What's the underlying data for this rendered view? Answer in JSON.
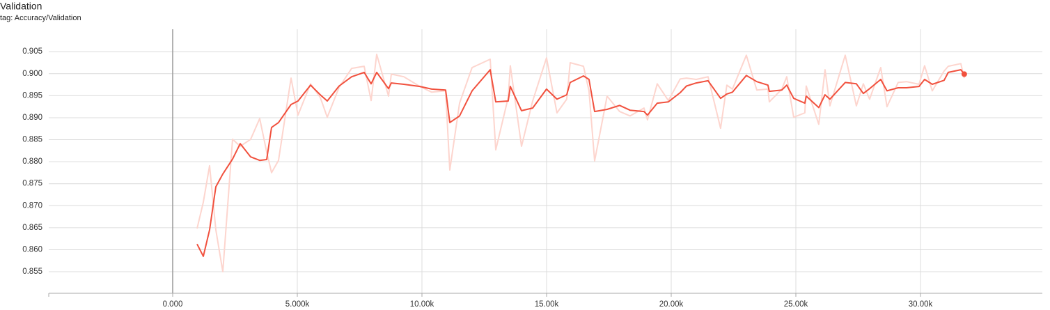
{
  "chart_data": {
    "type": "line",
    "title": "Validation",
    "subtitle": "tag: Accuracy/Validation",
    "x": [
      978,
      1229,
      1480,
      1732,
      2011,
      2402,
      2709,
      3128,
      3491,
      3771,
      3966,
      4245,
      4748,
      5027,
      5530,
      5921,
      6200,
      6675,
      7178,
      7681,
      7960,
      8183,
      8658,
      8770,
      9273,
      9915,
      10390,
      10949,
      11116,
      11507,
      12010,
      12736,
      12960,
      13462,
      13546,
      13993,
      14440,
      14998,
      15417,
      15808,
      15948,
      16479,
      16702,
      16926,
      17428,
      17931,
      18350,
      18909,
      19048,
      19439,
      19886,
      20361,
      20612,
      21003,
      21478,
      21981,
      22232,
      22456,
      23014,
      23433,
      23880,
      23936,
      24439,
      24634,
      24914,
      25360,
      25416,
      25919,
      26170,
      26366,
      26980,
      27427,
      27707,
      27958,
      28405,
      28656,
      29103,
      29438,
      29941,
      30164,
      30472,
      30946,
      31114,
      31617,
      31756
    ],
    "series": [
      {
        "color": "#fdd5ce",
        "width": 2,
        "values": [
          0.8648,
          0.8708,
          0.8791,
          0.8645,
          0.855,
          0.8851,
          0.8835,
          0.8851,
          0.8898,
          0.8822,
          0.8775,
          0.8803,
          0.899,
          0.8906,
          0.8977,
          0.8946,
          0.8901,
          0.8969,
          0.9012,
          0.9017,
          0.8939,
          0.9044,
          0.8949,
          0.8999,
          0.8993,
          0.8971,
          0.8958,
          0.8961,
          0.8781,
          0.8933,
          0.9014,
          0.9033,
          0.8827,
          0.8946,
          0.9018,
          0.8835,
          0.8938,
          0.9036,
          0.8911,
          0.8942,
          0.9025,
          0.9017,
          0.8961,
          0.8802,
          0.8949,
          0.8914,
          0.8904,
          0.8922,
          0.8895,
          0.8977,
          0.8939,
          0.8988,
          0.899,
          0.8987,
          0.8993,
          0.8876,
          0.8974,
          0.8965,
          0.9042,
          0.8963,
          0.8965,
          0.8936,
          0.8965,
          0.8993,
          0.8901,
          0.8911,
          0.8972,
          0.8885,
          0.9009,
          0.8927,
          0.9042,
          0.8927,
          0.8977,
          0.8942,
          0.9014,
          0.8925,
          0.898,
          0.8982,
          0.8976,
          0.9018,
          0.8961,
          0.9006,
          0.9017,
          0.9023,
          0.899
        ]
      },
      {
        "color": "#f1513e",
        "width": 2,
        "end_marker": true,
        "values": [
          0.8613,
          0.8585,
          0.8645,
          0.8743,
          0.8772,
          0.8806,
          0.8841,
          0.8811,
          0.8803,
          0.8805,
          0.8878,
          0.8889,
          0.893,
          0.8938,
          0.8974,
          0.8952,
          0.8938,
          0.8972,
          0.8993,
          0.9003,
          0.8977,
          0.9003,
          0.8966,
          0.8979,
          0.8976,
          0.8971,
          0.8965,
          0.8963,
          0.8889,
          0.8904,
          0.8961,
          0.9009,
          0.8936,
          0.8938,
          0.8971,
          0.8916,
          0.8922,
          0.8965,
          0.8942,
          0.8952,
          0.898,
          0.8995,
          0.8987,
          0.8914,
          0.8919,
          0.8928,
          0.8917,
          0.8914,
          0.8906,
          0.8933,
          0.8936,
          0.8957,
          0.8972,
          0.8979,
          0.8984,
          0.8944,
          0.8954,
          0.8958,
          0.8996,
          0.8982,
          0.8974,
          0.896,
          0.8963,
          0.8974,
          0.8944,
          0.8933,
          0.8949,
          0.8923,
          0.8952,
          0.8942,
          0.898,
          0.8977,
          0.8955,
          0.8966,
          0.8987,
          0.8961,
          0.8968,
          0.8968,
          0.8971,
          0.8987,
          0.8976,
          0.8985,
          0.9003,
          0.9009,
          0.8999
        ]
      }
    ],
    "xlim": [
      -4972,
      34888
    ],
    "xticks": [
      {
        "value": 0,
        "label": "0.000"
      },
      {
        "value": 5000,
        "label": "5.000k"
      },
      {
        "value": 10000,
        "label": "10.00k"
      },
      {
        "value": 15000,
        "label": "15.00k"
      },
      {
        "value": 20000,
        "label": "20.00k"
      },
      {
        "value": 25000,
        "label": "25.00k"
      },
      {
        "value": 30000,
        "label": "30.00k"
      }
    ],
    "ylim": [
      0.8501,
      0.9101
    ],
    "yticks": [
      0.855,
      {
        "value": 0.86,
        "label": "0.860"
      },
      0.865,
      {
        "value": 0.87,
        "label": "0.870"
      },
      0.875,
      {
        "value": 0.88,
        "label": "0.880"
      },
      0.885,
      {
        "value": 0.89,
        "label": "0.890"
      },
      0.895,
      {
        "value": 0.9,
        "label": "0.900"
      },
      0.905
    ],
    "grid": true
  }
}
